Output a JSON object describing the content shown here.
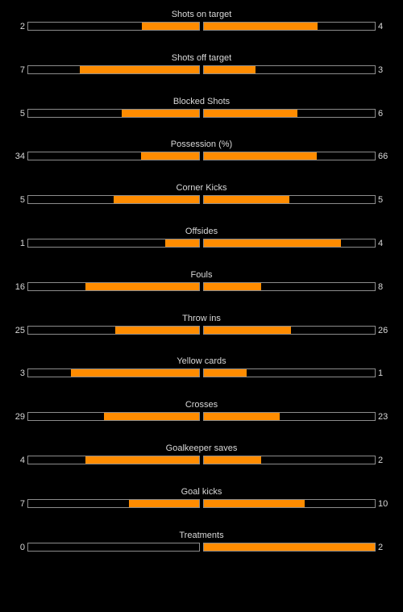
{
  "accent_color": "#ff8c00",
  "stats": [
    {
      "label": "Shots on target",
      "home": "2",
      "away": "4",
      "home_fraction": 0.333,
      "away_fraction": 0.667
    },
    {
      "label": "Shots off target",
      "home": "7",
      "away": "3",
      "home_fraction": 0.7,
      "away_fraction": 0.3
    },
    {
      "label": "Blocked Shots",
      "home": "5",
      "away": "6",
      "home_fraction": 0.455,
      "away_fraction": 0.545
    },
    {
      "label": "Possession (%)",
      "home": "34",
      "away": "66",
      "home_fraction": 0.34,
      "away_fraction": 0.66
    },
    {
      "label": "Corner Kicks",
      "home": "5",
      "away": "5",
      "home_fraction": 0.5,
      "away_fraction": 0.5
    },
    {
      "label": "Offsides",
      "home": "1",
      "away": "4",
      "home_fraction": 0.2,
      "away_fraction": 0.8
    },
    {
      "label": "Fouls",
      "home": "16",
      "away": "8",
      "home_fraction": 0.667,
      "away_fraction": 0.333
    },
    {
      "label": "Throw ins",
      "home": "25",
      "away": "26",
      "home_fraction": 0.49,
      "away_fraction": 0.51
    },
    {
      "label": "Yellow cards",
      "home": "3",
      "away": "1",
      "home_fraction": 0.75,
      "away_fraction": 0.25
    },
    {
      "label": "Crosses",
      "home": "29",
      "away": "23",
      "home_fraction": 0.558,
      "away_fraction": 0.442
    },
    {
      "label": "Goalkeeper saves",
      "home": "4",
      "away": "2",
      "home_fraction": 0.667,
      "away_fraction": 0.333
    },
    {
      "label": "Goal kicks",
      "home": "7",
      "away": "10",
      "home_fraction": 0.412,
      "away_fraction": 0.588
    },
    {
      "label": "Treatments",
      "home": "0",
      "away": "2",
      "home_fraction": 0,
      "away_fraction": 1
    }
  ]
}
